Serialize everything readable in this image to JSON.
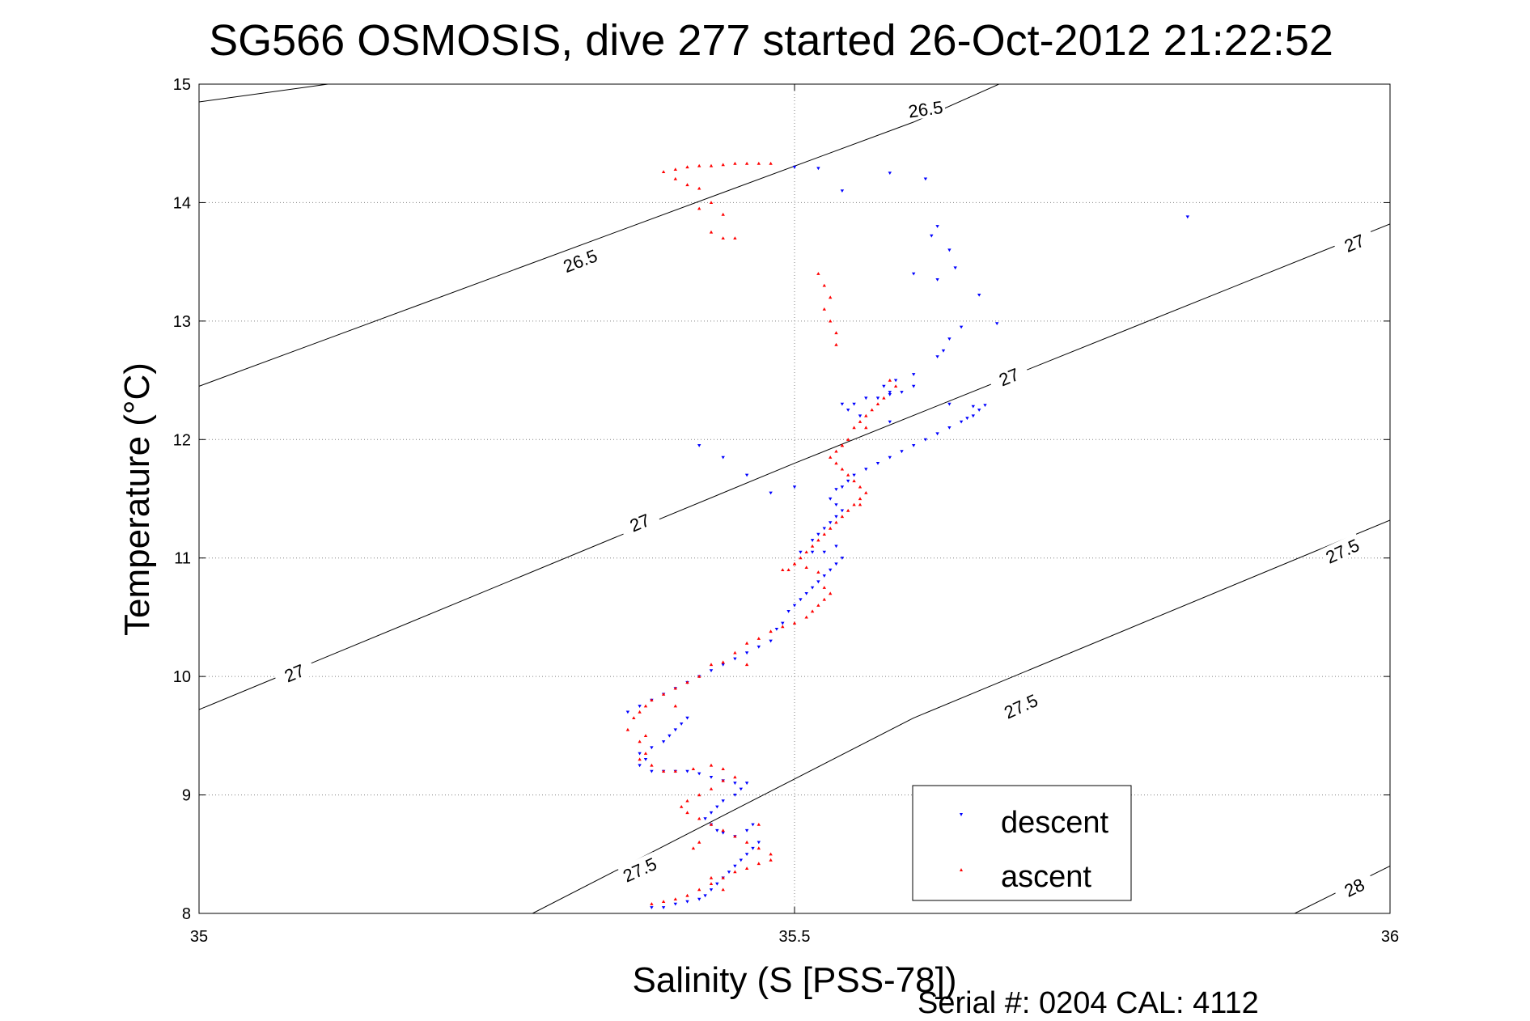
{
  "chart_data": {
    "type": "scatter",
    "title": "SG566 OSMOSIS, dive 277 started 26-Oct-2012 21:22:52",
    "xlabel": "Salinity (S [PSS-78])",
    "ylabel": "Temperature (°C)",
    "footer": "Serial #: 0204  CAL: 4112",
    "xlim": [
      35,
      36
    ],
    "ylim": [
      8,
      15
    ],
    "xticks": [
      35,
      35.5,
      36
    ],
    "xtick_labels": [
      "35",
      "35.5",
      "36"
    ],
    "yticks": [
      8,
      9,
      10,
      11,
      12,
      13,
      14,
      15
    ],
    "ytick_labels": [
      "8",
      "9",
      "10",
      "11",
      "12",
      "13",
      "14",
      "15"
    ],
    "grid": true,
    "legend_position": "bottom-right",
    "colors": {
      "descent": "#0000ff",
      "ascent": "#ff0000",
      "axes": "#000000",
      "grid": "#808080"
    },
    "density_contours": [
      {
        "label": "26.5",
        "points": [
          [
            35.0,
            14.85
          ],
          [
            35.36,
            15.35
          ]
        ],
        "label_positions": [
          [
            35.61,
            14.79
          ]
        ]
      },
      {
        "label": "26.5",
        "points": [
          [
            35.0,
            12.45
          ],
          [
            35.6,
            14.68
          ],
          [
            35.75,
            15.35
          ]
        ],
        "label_positions": [
          [
            35.32,
            13.51
          ]
        ]
      },
      {
        "label": "27",
        "points": [
          [
            35.0,
            9.72
          ],
          [
            35.5,
            11.8
          ],
          [
            36.0,
            13.82
          ]
        ],
        "label_positions": [
          [
            35.08,
            10.03
          ],
          [
            35.37,
            11.3
          ],
          [
            35.68,
            12.53
          ],
          [
            35.97,
            13.66
          ]
        ]
      },
      {
        "label": "27.5",
        "points": [
          [
            35.28,
            8.0
          ],
          [
            35.6,
            9.65
          ],
          [
            36.0,
            11.32
          ]
        ],
        "label_positions": [
          [
            35.37,
            8.37
          ],
          [
            35.69,
            9.75
          ],
          [
            35.96,
            11.06
          ]
        ]
      },
      {
        "label": "28",
        "points": [
          [
            35.92,
            8.0
          ],
          [
            36.0,
            8.4
          ]
        ],
        "label_positions": [
          [
            35.97,
            8.22
          ]
        ]
      }
    ],
    "series": [
      {
        "name": "descent",
        "marker": "triangle-down",
        "points": [
          [
            35.5,
            14.3
          ],
          [
            35.52,
            14.29
          ],
          [
            35.54,
            14.1
          ],
          [
            35.58,
            14.25
          ],
          [
            35.61,
            14.2
          ],
          [
            35.62,
            13.8
          ],
          [
            35.63,
            13.6
          ],
          [
            35.635,
            13.45
          ],
          [
            35.62,
            13.35
          ],
          [
            35.655,
            13.22
          ],
          [
            35.67,
            12.98
          ],
          [
            35.64,
            12.95
          ],
          [
            35.63,
            12.85
          ],
          [
            35.625,
            12.75
          ],
          [
            35.62,
            12.7
          ],
          [
            35.6,
            12.55
          ],
          [
            35.585,
            12.5
          ],
          [
            35.6,
            12.45
          ],
          [
            35.59,
            12.4
          ],
          [
            35.58,
            12.4
          ],
          [
            35.575,
            12.45
          ],
          [
            35.58,
            12.38
          ],
          [
            35.57,
            12.35
          ],
          [
            35.56,
            12.35
          ],
          [
            35.55,
            12.3
          ],
          [
            35.54,
            12.3
          ],
          [
            35.545,
            12.25
          ],
          [
            35.555,
            12.2
          ],
          [
            35.65,
            12.28
          ],
          [
            35.66,
            12.29
          ],
          [
            35.655,
            12.25
          ],
          [
            35.65,
            12.2
          ],
          [
            35.645,
            12.18
          ],
          [
            35.64,
            12.15
          ],
          [
            35.63,
            12.1
          ],
          [
            35.62,
            12.05
          ],
          [
            35.61,
            12.0
          ],
          [
            35.6,
            11.95
          ],
          [
            35.59,
            11.9
          ],
          [
            35.58,
            11.85
          ],
          [
            35.57,
            11.8
          ],
          [
            35.56,
            11.75
          ],
          [
            35.55,
            11.7
          ],
          [
            35.545,
            11.65
          ],
          [
            35.54,
            11.6
          ],
          [
            35.535,
            11.58
          ],
          [
            35.53,
            11.5
          ],
          [
            35.535,
            11.45
          ],
          [
            35.54,
            11.4
          ],
          [
            35.535,
            11.35
          ],
          [
            35.53,
            11.3
          ],
          [
            35.525,
            11.25
          ],
          [
            35.52,
            11.2
          ],
          [
            35.515,
            11.15
          ],
          [
            35.505,
            11.05
          ],
          [
            35.515,
            11.05
          ],
          [
            35.525,
            11.05
          ],
          [
            35.535,
            11.1
          ],
          [
            35.54,
            11.0
          ],
          [
            35.535,
            10.95
          ],
          [
            35.53,
            10.9
          ],
          [
            35.525,
            10.85
          ],
          [
            35.52,
            10.8
          ],
          [
            35.515,
            10.75
          ],
          [
            35.51,
            10.7
          ],
          [
            35.505,
            10.65
          ],
          [
            35.5,
            10.6
          ],
          [
            35.495,
            10.55
          ],
          [
            35.49,
            10.45
          ],
          [
            35.485,
            10.4
          ],
          [
            35.48,
            10.3
          ],
          [
            35.47,
            10.25
          ],
          [
            35.46,
            10.2
          ],
          [
            35.45,
            10.15
          ],
          [
            35.44,
            10.1
          ],
          [
            35.43,
            10.05
          ],
          [
            35.42,
            10.0
          ],
          [
            35.41,
            9.95
          ],
          [
            35.4,
            9.9
          ],
          [
            35.39,
            9.85
          ],
          [
            35.38,
            9.8
          ],
          [
            35.37,
            9.75
          ],
          [
            35.36,
            9.7
          ],
          [
            35.41,
            9.65
          ],
          [
            35.405,
            9.6
          ],
          [
            35.4,
            9.55
          ],
          [
            35.395,
            9.5
          ],
          [
            35.39,
            9.45
          ],
          [
            35.38,
            9.4
          ],
          [
            35.37,
            9.35
          ],
          [
            35.375,
            9.3
          ],
          [
            35.37,
            9.25
          ],
          [
            35.38,
            9.2
          ],
          [
            35.39,
            9.2
          ],
          [
            35.4,
            9.2
          ],
          [
            35.41,
            9.2
          ],
          [
            35.42,
            9.18
          ],
          [
            35.43,
            9.15
          ],
          [
            35.44,
            9.12
          ],
          [
            35.45,
            9.1
          ],
          [
            35.46,
            9.1
          ],
          [
            35.455,
            9.05
          ],
          [
            35.45,
            9.0
          ],
          [
            35.44,
            8.95
          ],
          [
            35.435,
            8.9
          ],
          [
            35.43,
            8.85
          ],
          [
            35.425,
            8.8
          ],
          [
            35.43,
            8.75
          ],
          [
            35.435,
            8.7
          ],
          [
            35.44,
            8.68
          ],
          [
            35.45,
            8.65
          ],
          [
            35.46,
            8.7
          ],
          [
            35.465,
            8.75
          ],
          [
            35.47,
            8.6
          ],
          [
            35.465,
            8.55
          ],
          [
            35.46,
            8.5
          ],
          [
            35.455,
            8.45
          ],
          [
            35.45,
            8.4
          ],
          [
            35.445,
            8.35
          ],
          [
            35.44,
            8.3
          ],
          [
            35.435,
            8.25
          ],
          [
            35.43,
            8.2
          ],
          [
            35.425,
            8.15
          ],
          [
            35.42,
            8.12
          ],
          [
            35.41,
            8.1
          ],
          [
            35.4,
            8.08
          ],
          [
            35.39,
            8.05
          ],
          [
            35.38,
            8.05
          ],
          [
            35.83,
            13.88
          ],
          [
            35.615,
            13.72
          ],
          [
            35.6,
            13.4
          ],
          [
            35.63,
            12.3
          ],
          [
            35.58,
            12.15
          ],
          [
            35.5,
            11.6
          ],
          [
            35.48,
            11.55
          ],
          [
            35.46,
            11.7
          ],
          [
            35.44,
            11.85
          ],
          [
            35.42,
            11.95
          ]
        ]
      },
      {
        "name": "ascent",
        "marker": "triangle-up",
        "points": [
          [
            35.48,
            14.33
          ],
          [
            35.47,
            14.33
          ],
          [
            35.46,
            14.33
          ],
          [
            35.45,
            14.33
          ],
          [
            35.44,
            14.32
          ],
          [
            35.43,
            14.31
          ],
          [
            35.42,
            14.31
          ],
          [
            35.41,
            14.3
          ],
          [
            35.4,
            14.28
          ],
          [
            35.39,
            14.26
          ],
          [
            35.4,
            14.2
          ],
          [
            35.41,
            14.15
          ],
          [
            35.42,
            14.12
          ],
          [
            35.43,
            14.0
          ],
          [
            35.44,
            13.9
          ],
          [
            35.42,
            13.95
          ],
          [
            35.43,
            13.75
          ],
          [
            35.44,
            13.7
          ],
          [
            35.45,
            13.7
          ],
          [
            35.52,
            13.4
          ],
          [
            35.525,
            13.3
          ],
          [
            35.53,
            13.2
          ],
          [
            35.525,
            13.1
          ],
          [
            35.53,
            13.0
          ],
          [
            35.535,
            12.9
          ],
          [
            35.535,
            12.8
          ],
          [
            35.58,
            12.5
          ],
          [
            35.585,
            12.45
          ],
          [
            35.575,
            12.35
          ],
          [
            35.57,
            12.3
          ],
          [
            35.565,
            12.25
          ],
          [
            35.56,
            12.2
          ],
          [
            35.555,
            12.15
          ],
          [
            35.55,
            12.1
          ],
          [
            35.545,
            12.0
          ],
          [
            35.54,
            11.95
          ],
          [
            35.535,
            11.9
          ],
          [
            35.53,
            11.85
          ],
          [
            35.535,
            11.8
          ],
          [
            35.54,
            11.75
          ],
          [
            35.545,
            11.7
          ],
          [
            35.55,
            11.65
          ],
          [
            35.555,
            11.6
          ],
          [
            35.56,
            11.55
          ],
          [
            35.555,
            11.5
          ],
          [
            35.55,
            11.45
          ],
          [
            35.545,
            11.4
          ],
          [
            35.54,
            11.35
          ],
          [
            35.535,
            11.3
          ],
          [
            35.53,
            11.25
          ],
          [
            35.525,
            11.2
          ],
          [
            35.52,
            11.15
          ],
          [
            35.515,
            11.1
          ],
          [
            35.51,
            11.05
          ],
          [
            35.505,
            11.0
          ],
          [
            35.5,
            10.95
          ],
          [
            35.495,
            10.9
          ],
          [
            35.49,
            10.9
          ],
          [
            35.51,
            10.92
          ],
          [
            35.52,
            10.88
          ],
          [
            35.525,
            10.75
          ],
          [
            35.53,
            10.7
          ],
          [
            35.525,
            10.65
          ],
          [
            35.52,
            10.6
          ],
          [
            35.515,
            10.55
          ],
          [
            35.51,
            10.5
          ],
          [
            35.5,
            10.45
          ],
          [
            35.49,
            10.42
          ],
          [
            35.48,
            10.38
          ],
          [
            35.47,
            10.32
          ],
          [
            35.46,
            10.28
          ],
          [
            35.45,
            10.2
          ],
          [
            35.44,
            10.12
          ],
          [
            35.43,
            10.1
          ],
          [
            35.42,
            10.0
          ],
          [
            35.41,
            9.95
          ],
          [
            35.4,
            9.9
          ],
          [
            35.39,
            9.85
          ],
          [
            35.38,
            9.8
          ],
          [
            35.375,
            9.75
          ],
          [
            35.37,
            9.7
          ],
          [
            35.365,
            9.65
          ],
          [
            35.36,
            9.55
          ],
          [
            35.375,
            9.5
          ],
          [
            35.37,
            9.45
          ],
          [
            35.375,
            9.35
          ],
          [
            35.37,
            9.3
          ],
          [
            35.38,
            9.25
          ],
          [
            35.39,
            9.2
          ],
          [
            35.4,
            9.2
          ],
          [
            35.415,
            9.22
          ],
          [
            35.43,
            9.25
          ],
          [
            35.44,
            9.22
          ],
          [
            35.45,
            9.15
          ],
          [
            35.44,
            9.12
          ],
          [
            35.43,
            9.05
          ],
          [
            35.42,
            9.0
          ],
          [
            35.41,
            8.95
          ],
          [
            35.405,
            8.9
          ],
          [
            35.41,
            8.85
          ],
          [
            35.42,
            8.8
          ],
          [
            35.43,
            8.75
          ],
          [
            35.44,
            8.7
          ],
          [
            35.45,
            8.65
          ],
          [
            35.46,
            8.6
          ],
          [
            35.47,
            8.55
          ],
          [
            35.48,
            8.45
          ],
          [
            35.47,
            8.42
          ],
          [
            35.46,
            8.38
          ],
          [
            35.45,
            8.35
          ],
          [
            35.44,
            8.3
          ],
          [
            35.43,
            8.25
          ],
          [
            35.42,
            8.2
          ],
          [
            35.41,
            8.15
          ],
          [
            35.4,
            8.12
          ],
          [
            35.39,
            8.1
          ],
          [
            35.38,
            8.08
          ],
          [
            35.44,
            8.2
          ],
          [
            35.43,
            8.3
          ],
          [
            35.415,
            8.55
          ],
          [
            35.42,
            8.6
          ],
          [
            35.47,
            8.75
          ],
          [
            35.48,
            8.5
          ],
          [
            35.4,
            9.75
          ],
          [
            35.46,
            10.1
          ],
          [
            35.5,
            10.95
          ],
          [
            35.555,
            11.45
          ],
          [
            35.54,
            11.95
          ],
          [
            35.56,
            12.1
          ]
        ]
      }
    ]
  }
}
